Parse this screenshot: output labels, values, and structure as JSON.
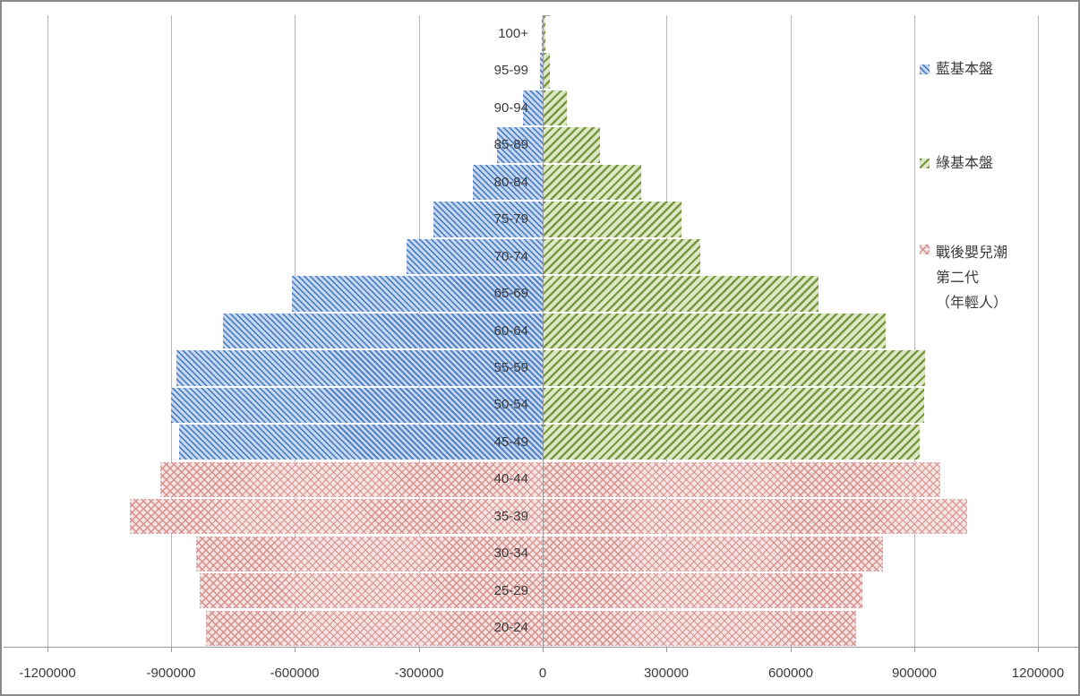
{
  "chart_data": {
    "type": "bar",
    "subtype": "population-pyramid",
    "orientation": "horizontal",
    "title": "",
    "xlabel": "",
    "ylabel": "",
    "grid": true,
    "legend_position": "right",
    "xlim": [
      -1200000,
      1200000
    ],
    "x_ticks": [
      -1200000,
      -900000,
      -600000,
      -300000,
      0,
      300000,
      600000,
      900000,
      1200000
    ],
    "x_tick_labels": [
      "-1200000",
      "-900000",
      "-600000",
      "-300000",
      "0",
      "300000",
      "600000",
      "900000",
      "1200000"
    ],
    "categories": [
      "100+",
      "95-99",
      "90-94",
      "85-89",
      "80-84",
      "75-79",
      "70-74",
      "65-69",
      "60-64",
      "55-59",
      "50-54",
      "45-49",
      "40-44",
      "35-39",
      "30-34",
      "25-29",
      "20-24"
    ],
    "series": [
      {
        "key": "blue",
        "name": "藍基本盤",
        "side": "left",
        "hatch": "forward-diagonal",
        "values": [
          3000,
          7000,
          48000,
          111000,
          169000,
          264000,
          330000,
          607000,
          774000,
          887000,
          900000,
          881000,
          0,
          0,
          0,
          0,
          0
        ]
      },
      {
        "key": "green",
        "name": "綠基本盤",
        "side": "right",
        "hatch": "backward-diagonal",
        "values": [
          4000,
          15000,
          56000,
          137000,
          236000,
          334000,
          380000,
          667000,
          828000,
          924000,
          922000,
          912000,
          0,
          0,
          0,
          0,
          0
        ]
      },
      {
        "key": "pink",
        "name": "戰後嬰兒潮第二代（年輕人）",
        "side": "both",
        "hatch": "cross-diagonal",
        "values_left": [
          0,
          0,
          0,
          0,
          0,
          0,
          0,
          0,
          0,
          0,
          0,
          0,
          926000,
          1000000,
          839000,
          830000,
          815000
        ],
        "values_right": [
          0,
          0,
          0,
          0,
          0,
          0,
          0,
          0,
          0,
          0,
          0,
          0,
          961000,
          1026000,
          823000,
          772000,
          758000
        ]
      }
    ],
    "legend": [
      {
        "series_key": "blue",
        "label": "藍基本盤",
        "lines": [
          "藍基本盤"
        ]
      },
      {
        "series_key": "green",
        "label": "綠基本盤",
        "lines": [
          "綠基本盤"
        ]
      },
      {
        "series_key": "pink",
        "label": "戰後嬰兒潮第二代（年輕人）",
        "lines": [
          "戰後嬰兒潮",
          "第二代",
          "（年輕人）"
        ]
      }
    ],
    "colors": {
      "blue_stripe": "#5083c4",
      "blue_bg": "#cbdaf2",
      "green_stripe": "#789740",
      "green_bg": "#dce8c6",
      "pink_stripe": "#d5908e",
      "pink_bg": "#f5e3e2",
      "gridline": "#b5b5b5",
      "axis": "#9a9a9a",
      "text": "#3b3b3b"
    }
  }
}
